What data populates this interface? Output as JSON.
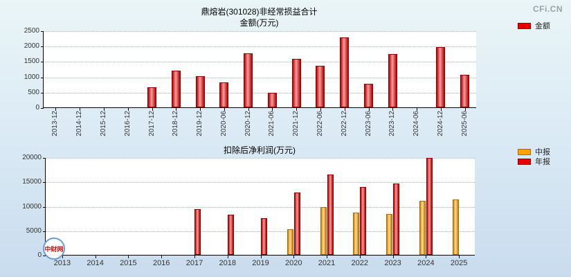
{
  "page": {
    "brand": "CFi.CN",
    "logo_text": "中财网"
  },
  "chart_data": [
    {
      "type": "bar",
      "title": "鼎熔岩(301028)非经常损益合计",
      "subtitle": "金额(万元)",
      "ylim": [
        0,
        2500
      ],
      "yticks": [
        0,
        500,
        1000,
        1500,
        2000,
        2500
      ],
      "grid": true,
      "legend_position": "top-right",
      "xtick_rotation": 90,
      "categories": [
        "2013-12",
        "2014-12",
        "2015-12",
        "2016-12",
        "2017-12",
        "2018-12",
        "2019-12",
        "2020-06",
        "2020-12",
        "2021-06",
        "2021-12",
        "2022-06",
        "2022-12",
        "2023-06",
        "2023-12",
        "2024-06",
        "2024-12",
        "2025-06"
      ],
      "series": [
        {
          "name": "金额",
          "color": "#e60000",
          "border": "#990000",
          "values": [
            null,
            null,
            null,
            null,
            650,
            1200,
            1020,
            800,
            1750,
            480,
            1580,
            1350,
            2270,
            760,
            1730,
            null,
            1950,
            1060
          ]
        }
      ],
      "legend": [
        {
          "label": "金额",
          "color": "#e60000"
        }
      ]
    },
    {
      "type": "bar",
      "title": "扣除后净利润(万元)",
      "ylim": [
        0,
        20000
      ],
      "yticks": [
        0,
        5000,
        10000,
        15000,
        20000
      ],
      "grid": true,
      "legend_position": "top-right",
      "xtick_rotation": 0,
      "categories": [
        "2013",
        "2014",
        "2015",
        "2016",
        "2017",
        "2018",
        "2019",
        "2020",
        "2021",
        "2022",
        "2023",
        "2024",
        "2025"
      ],
      "series": [
        {
          "name": "中报",
          "color": "#ffa200",
          "border": "#b36b00",
          "values": [
            null,
            null,
            null,
            null,
            null,
            null,
            null,
            5300,
            9800,
            8700,
            8400,
            11000,
            11400
          ]
        },
        {
          "name": "年报",
          "color": "#e60000",
          "border": "#990000",
          "values": [
            null,
            null,
            null,
            null,
            9300,
            8300,
            7500,
            12800,
            16500,
            13900,
            14600,
            19900,
            null
          ]
        }
      ],
      "legend": [
        {
          "label": "中报",
          "color": "#ffa200"
        },
        {
          "label": "年报",
          "color": "#e60000"
        }
      ]
    }
  ]
}
